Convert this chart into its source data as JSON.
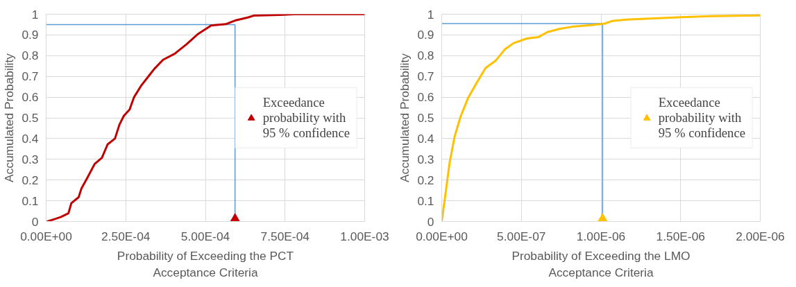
{
  "chart_data": [
    {
      "type": "line",
      "xlabel": "Probability of Exceeding the PCT Acceptance Criteria",
      "ylabel": "Accumulated Probability",
      "xlim": [
        0,
        0.001
      ],
      "ylim": [
        0,
        1
      ],
      "xticks": [
        {
          "value": 0,
          "label": "0.00E+00"
        },
        {
          "value": 0.00025,
          "label": "2.50E-04"
        },
        {
          "value": 0.0005,
          "label": "5.00E-04"
        },
        {
          "value": 0.00075,
          "label": "7.50E-04"
        },
        {
          "value": 0.001,
          "label": "1.00E-03"
        }
      ],
      "yticks": [
        0,
        0.1,
        0.2,
        0.3,
        0.4,
        0.5,
        0.6,
        0.7,
        0.8,
        0.9,
        1
      ],
      "grid": true,
      "legend": "right",
      "series": [
        {
          "color": "#c00000",
          "x": [
            3e-06,
            2.8e-05,
            4.7e-05,
            7e-05,
            7.9e-05,
            0.000102,
            0.000111,
            0.000129,
            0.000152,
            0.000175,
            0.000193,
            0.000216,
            0.00023,
            0.000244,
            0.000262,
            0.000276,
            0.000299,
            0.000321,
            0.00034,
            0.000367,
            0.000404,
            0.00044,
            0.000477,
            0.000518,
            0.000564,
            0.000596,
            0.000633,
            0.000651,
            0.000734,
            0.000779,
            0.001
          ],
          "values": [
            0,
            0.012,
            0.022,
            0.04,
            0.088,
            0.117,
            0.16,
            0.21,
            0.277,
            0.307,
            0.372,
            0.4,
            0.467,
            0.51,
            0.54,
            0.6,
            0.657,
            0.7,
            0.737,
            0.78,
            0.81,
            0.854,
            0.905,
            0.946,
            0.952,
            0.971,
            0.984,
            0.993,
            0.997,
            1,
            1
          ]
        },
        {
          "type": "scatter",
          "name": "Exceedance probability with 95 % confidence",
          "color": "#c00000",
          "marker": "triangle",
          "x": [
            0.000593
          ],
          "values": [
            0
          ]
        }
      ],
      "ref_lines": [
        {
          "axis": "y",
          "value": 0.95,
          "color": "#5b9bd5"
        },
        {
          "axis": "x",
          "value": 0.000593,
          "color": "#5b9bd5"
        }
      ]
    },
    {
      "type": "line",
      "xlabel": "Probability of Exceeding the LMO Acceptance Criteria",
      "ylabel": "Accumulated Probability",
      "xlim": [
        0,
        2e-06
      ],
      "ylim": [
        0,
        1
      ],
      "xticks": [
        {
          "value": 0,
          "label": "0.00E+00"
        },
        {
          "value": 5e-07,
          "label": "5.00E-07"
        },
        {
          "value": 1e-06,
          "label": "1.00E-06"
        },
        {
          "value": 1.5e-06,
          "label": "1.50E-06"
        },
        {
          "value": 2e-06,
          "label": "2.00E-06"
        }
      ],
      "yticks": [
        0,
        0.1,
        0.2,
        0.3,
        0.4,
        0.5,
        0.6,
        0.7,
        0.8,
        0.9,
        1
      ],
      "grid": true,
      "legend": "right",
      "series": [
        {
          "color": "#ffc000",
          "x": [
            0,
            1.7e-08,
            3.5e-08,
            5e-08,
            8.1e-08,
            1.18e-07,
            1.65e-07,
            2.2e-07,
            2.75e-07,
            3.4e-07,
            3.96e-07,
            4.5e-07,
            5.34e-07,
            6.08e-07,
            6.64e-07,
            7.38e-07,
            8.3e-07,
            9.4e-07,
            1.024e-06,
            1.07e-06,
            1.163e-06,
            1.31e-06,
            1.51e-06,
            1.7e-06,
            2e-06
          ],
          "values": [
            0,
            0.095,
            0.2,
            0.285,
            0.41,
            0.505,
            0.595,
            0.67,
            0.74,
            0.777,
            0.83,
            0.86,
            0.883,
            0.89,
            0.914,
            0.929,
            0.941,
            0.947,
            0.955,
            0.967,
            0.974,
            0.979,
            0.986,
            0.991,
            0.994
          ]
        },
        {
          "type": "scatter",
          "name": "Exceedance probability with 95 % confidence",
          "color": "#ffc000",
          "marker": "triangle",
          "x": [
            1.01e-06
          ],
          "values": [
            0
          ]
        }
      ],
      "ref_lines": [
        {
          "axis": "y",
          "value": 0.955,
          "color": "#5b9bd5"
        },
        {
          "axis": "x",
          "value": 1.01e-06,
          "color": "#5b9bd5"
        }
      ]
    }
  ]
}
